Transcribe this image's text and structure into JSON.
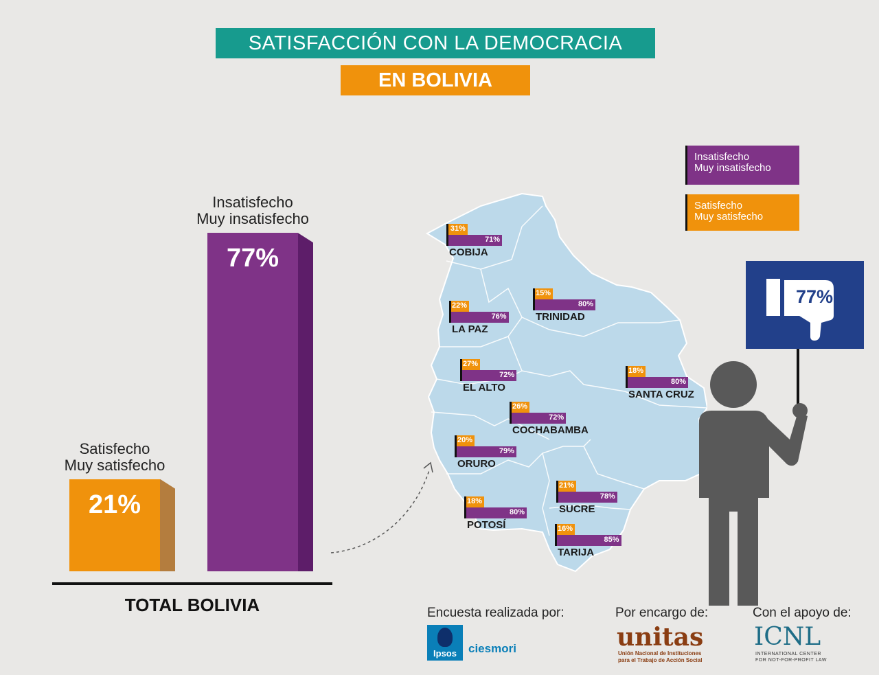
{
  "header": {
    "title": "SATISFACCIÓN CON LA DEMOCRACIA",
    "subtitle": "EN BOLIVIA"
  },
  "colors": {
    "satisfied": "#f0920c",
    "dissatisfied": "#7f3387",
    "teal": "#179b8e",
    "navy": "#22408a",
    "map": "#bcd9ea",
    "person": "#595959"
  },
  "chart_data": {
    "type": "bar",
    "categories": [
      "Satisfecho Muy satisfecho",
      "Insatisfecho Muy insatisfecho"
    ],
    "values": [
      21,
      77
    ],
    "value_labels": [
      "21%",
      "77%"
    ],
    "label_lines": [
      [
        "Satisfecho",
        "Muy satisfecho"
      ],
      [
        "Insatisfecho",
        "Muy insatisfecho"
      ]
    ],
    "xlabel": "TOTAL BOLIVIA",
    "ylim": [
      0,
      100
    ]
  },
  "legend": {
    "dissatisfied": [
      "Insatisfecho",
      "Muy insatisfecho"
    ],
    "satisfied": [
      "Satisfecho",
      "Muy satisfecho"
    ]
  },
  "regions": [
    {
      "name": "COBIJA",
      "satisfied": "31%",
      "dissatisfied": "71%",
      "sat_value": 31,
      "ins_value": 71
    },
    {
      "name": "TRINIDAD",
      "satisfied": "15%",
      "dissatisfied": "80%",
      "sat_value": 15,
      "ins_value": 80
    },
    {
      "name": "LA PAZ",
      "satisfied": "22%",
      "dissatisfied": "76%",
      "sat_value": 22,
      "ins_value": 76
    },
    {
      "name": "EL ALTO",
      "satisfied": "27%",
      "dissatisfied": "72%",
      "sat_value": 27,
      "ins_value": 72
    },
    {
      "name": "SANTA CRUZ",
      "satisfied": "18%",
      "dissatisfied": "80%",
      "sat_value": 18,
      "ins_value": 80
    },
    {
      "name": "COCHABAMBA",
      "satisfied": "26%",
      "dissatisfied": "72%",
      "sat_value": 26,
      "ins_value": 72
    },
    {
      "name": "ORURO",
      "satisfied": "20%",
      "dissatisfied": "79%",
      "sat_value": 20,
      "ins_value": 79
    },
    {
      "name": "SUCRE",
      "satisfied": "21%",
      "dissatisfied": "78%",
      "sat_value": 21,
      "ins_value": 78
    },
    {
      "name": "POTOSÍ",
      "satisfied": "18%",
      "dissatisfied": "80%",
      "sat_value": 18,
      "ins_value": 80
    },
    {
      "name": "TARIJA",
      "satisfied": "16%",
      "dissatisfied": "85%",
      "sat_value": 16,
      "ins_value": 85
    }
  ],
  "sign": {
    "value": "77%",
    "icon": "thumbs-down-icon"
  },
  "footer": {
    "survey_label": "Encuesta realizada por:",
    "survey_logo_a": "Ipsos",
    "survey_logo_b": "ciesmori",
    "commission_label": "Por encargo de:",
    "commission_logo": "unitas",
    "commission_logo_sub1": "Unión Nacional de Instituciones",
    "commission_logo_sub2": "para el Trabajo de Acción Social",
    "support_label": "Con el apoyo de:",
    "support_logo": "ICNL",
    "support_logo_sub1": "INTERNATIONAL CENTER",
    "support_logo_sub2": "FOR NOT-FOR-PROFIT LAW"
  }
}
